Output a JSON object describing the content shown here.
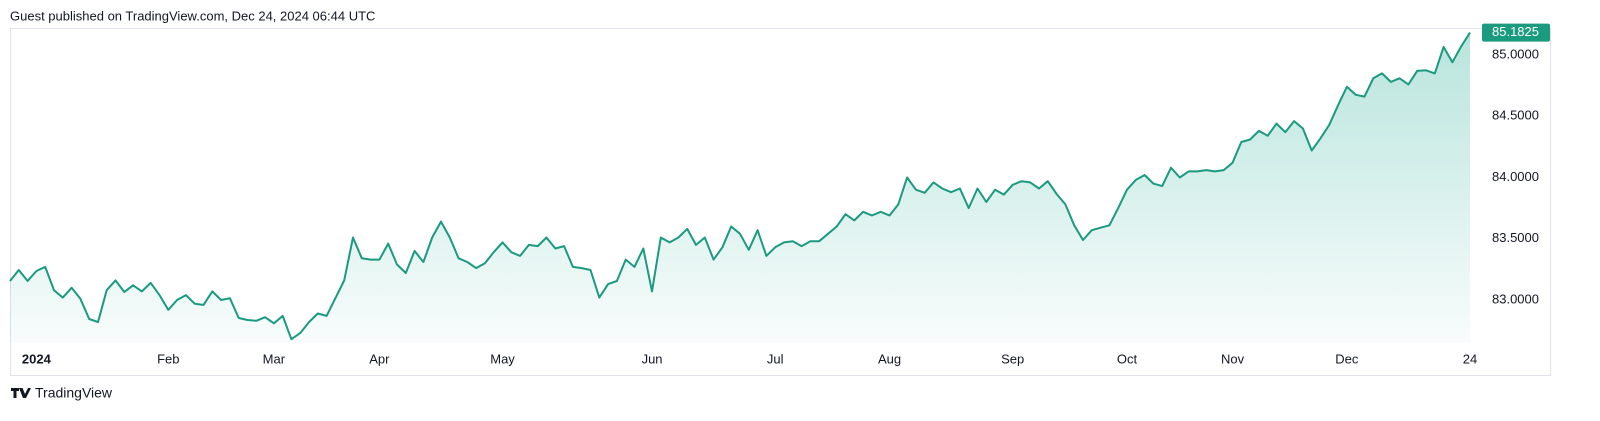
{
  "chart_data": {
    "type": "area",
    "title": "Guest published on TradingView.com, Dec 24, 2024 06:44 UTC",
    "source": "TradingView",
    "categories": [
      null,
      null,
      null,
      "2024",
      null,
      null,
      null,
      null,
      null,
      null,
      null,
      null,
      null,
      null,
      null,
      null,
      null,
      null,
      "Feb",
      null,
      null,
      null,
      null,
      null,
      null,
      null,
      null,
      null,
      null,
      null,
      "Mar",
      null,
      null,
      null,
      null,
      null,
      null,
      null,
      null,
      null,
      null,
      null,
      "Apr",
      null,
      null,
      null,
      null,
      null,
      null,
      null,
      null,
      null,
      null,
      null,
      null,
      null,
      "May",
      null,
      null,
      null,
      null,
      null,
      null,
      null,
      null,
      null,
      null,
      null,
      null,
      null,
      null,
      null,
      null,
      "Jun",
      null,
      null,
      null,
      null,
      null,
      null,
      null,
      null,
      null,
      null,
      null,
      null,
      null,
      "Jul",
      null,
      null,
      null,
      null,
      null,
      null,
      null,
      null,
      null,
      null,
      null,
      null,
      "Aug",
      null,
      null,
      null,
      null,
      null,
      null,
      null,
      null,
      null,
      null,
      null,
      null,
      null,
      "Sep",
      null,
      null,
      null,
      null,
      null,
      null,
      null,
      null,
      null,
      null,
      null,
      null,
      "Oct",
      null,
      null,
      null,
      null,
      null,
      null,
      null,
      null,
      null,
      null,
      null,
      "Nov",
      null,
      null,
      null,
      null,
      null,
      null,
      null,
      null,
      null,
      null,
      null,
      null,
      "Dec",
      null,
      null,
      null,
      null,
      null,
      null,
      null,
      null,
      null,
      null,
      null,
      null,
      null,
      "24"
    ],
    "series": [
      {
        "color": "#1a9a7f",
        "values": [
          83.155,
          83.245,
          83.155,
          83.237,
          83.27,
          83.08,
          83.02,
          83.1,
          83.01,
          82.845,
          82.82,
          83.08,
          83.16,
          83.065,
          83.12,
          83.07,
          83.14,
          83.04,
          82.92,
          83.0,
          83.04,
          82.97,
          82.96,
          83.07,
          83.0,
          83.015,
          82.853,
          82.837,
          82.83,
          82.86,
          82.81,
          82.87,
          82.68,
          82.73,
          82.82,
          82.89,
          82.87,
          83.015,
          83.16,
          83.51,
          83.34,
          83.33,
          83.33,
          83.46,
          83.29,
          83.22,
          83.4,
          83.31,
          83.51,
          83.64,
          83.51,
          83.34,
          83.31,
          83.26,
          83.3,
          83.39,
          83.47,
          83.39,
          83.36,
          83.45,
          83.44,
          83.51,
          83.42,
          83.44,
          83.27,
          83.26,
          83.245,
          83.02,
          83.13,
          83.155,
          83.33,
          83.27,
          83.42,
          83.07,
          83.51,
          83.47,
          83.51,
          83.58,
          83.45,
          83.51,
          83.33,
          83.43,
          83.6,
          83.54,
          83.41,
          83.57,
          83.36,
          83.43,
          83.47,
          83.48,
          83.44,
          83.48,
          83.48,
          83.54,
          83.6,
          83.7,
          83.65,
          83.72,
          83.69,
          83.72,
          83.69,
          83.78,
          84.0,
          83.9,
          83.875,
          83.96,
          83.91,
          83.88,
          83.91,
          83.75,
          83.91,
          83.8,
          83.9,
          83.86,
          83.94,
          83.97,
          83.96,
          83.91,
          83.97,
          83.865,
          83.78,
          83.61,
          83.49,
          83.57,
          83.59,
          83.61,
          83.75,
          83.9,
          83.98,
          84.02,
          83.95,
          83.93,
          84.08,
          84.0,
          84.05,
          84.05,
          84.06,
          84.05,
          84.06,
          84.12,
          84.29,
          84.31,
          84.38,
          84.34,
          84.44,
          84.37,
          84.46,
          84.4,
          84.22,
          84.32,
          84.43,
          84.59,
          84.74,
          84.675,
          84.66,
          84.81,
          84.85,
          84.78,
          84.81,
          84.76,
          84.87,
          84.875,
          84.85,
          85.065,
          84.94,
          85.07,
          85.1825
        ]
      }
    ],
    "ylim": [
      82.649,
      85.204
    ],
    "yticks": [
      {
        "value": 83,
        "label": "83.0000"
      },
      {
        "value": 83.5,
        "label": "83.5000"
      },
      {
        "value": 84,
        "label": "84.0000"
      },
      {
        "value": 84.5,
        "label": "84.5000"
      },
      {
        "value": 85,
        "label": "85.0000"
      }
    ]
  }
}
